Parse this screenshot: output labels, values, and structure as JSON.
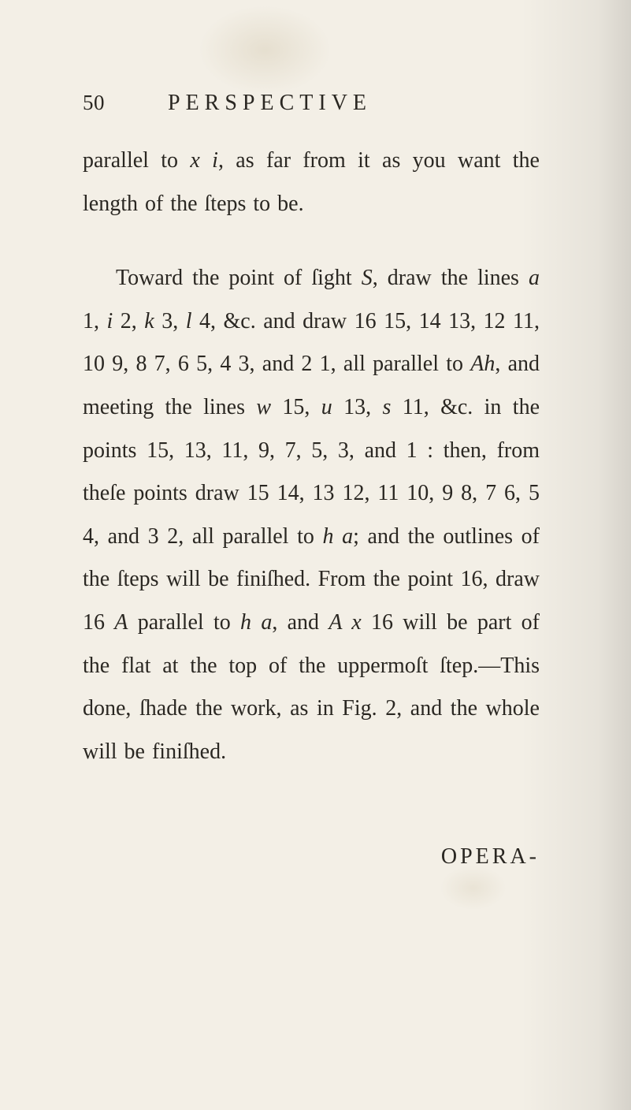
{
  "page_number": "50",
  "running_title": "PERSPECTIVE",
  "paragraphs": {
    "p1_html": "parallel to <i>x i</i>, as far from it as you want the length of the ſteps to be.",
    "p2_html": "Toward the point of ſight <i>S</i>, draw the lines <i>a</i> 1, <i>i</i> 2, <i>k</i> 3, <i>l</i> 4, &amp;c. and draw 16 15, 14 13, 12 11, 10 9, 8 7, 6 5, 4 3, and 2 1, all parallel to <i>Ah</i>, and meet­ing the lines <i>w</i> 15, <i>u</i> 13, <i>s</i> 11, &amp;c. in the points 15, 13, 11, 9, 7, 5, 3, and 1 : then, from theſe points draw 15 14, 13 12, 11 10, 9 8, 7 6, 5 4, and 3 2, all parallel to <i>h a</i>; and the outlines of the ſteps will be finiſhed. From the point 16, draw 16 <i>A</i> parallel to <i>h a</i>, and <i>A x</i> 16 will be part of the flat at the top of the uppermoſt ſtep.—This done, ſhade the work, as in Fig. 2, and the whole will be finiſhed."
  },
  "catchword": "OPERA-"
}
